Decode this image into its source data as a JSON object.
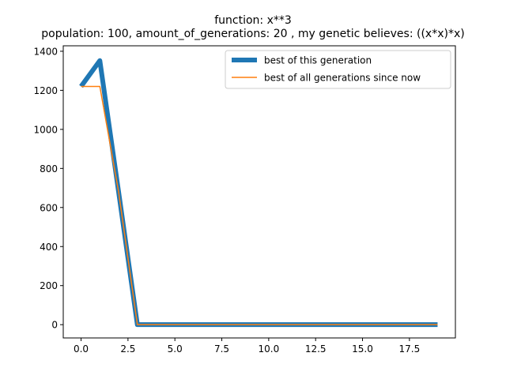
{
  "chart_data": {
    "type": "line",
    "title": "function:  x**3",
    "subtitle": "population: 100, amount_of_generations: 20 , my genetic believes: ((x*x)*x)",
    "xlabel": "",
    "ylabel": "",
    "xlim": [
      -0.95,
      19.95
    ],
    "ylim": [
      -68,
      1428
    ],
    "xticks": [
      0,
      2.5,
      5,
      7.5,
      10,
      12.5,
      15,
      17.5
    ],
    "xtick_labels": [
      "0.0",
      "2.5",
      "5.0",
      "7.5",
      "10.0",
      "12.5",
      "15.0",
      "17.5"
    ],
    "yticks": [
      0,
      200,
      400,
      600,
      800,
      1000,
      1200,
      1400
    ],
    "ytick_labels": [
      "0",
      "200",
      "400",
      "600",
      "800",
      "1000",
      "1200",
      "1400"
    ],
    "grid": false,
    "legend_position": "top-right",
    "x": [
      0,
      1,
      2,
      3,
      4,
      5,
      6,
      7,
      8,
      9,
      10,
      11,
      12,
      13,
      14,
      15,
      16,
      17,
      18,
      19
    ],
    "series": [
      {
        "name": "best of this generation",
        "color": "#1f77b4",
        "values": [
          1220,
          1352,
          680,
          0,
          0,
          0,
          0,
          0,
          0,
          0,
          0,
          0,
          0,
          0,
          0,
          0,
          0,
          0,
          0,
          0
        ]
      },
      {
        "name": "best of all generations since now",
        "color": "#ff7f0e",
        "values": [
          1220,
          1220,
          680,
          0,
          0,
          0,
          0,
          0,
          0,
          0,
          0,
          0,
          0,
          0,
          0,
          0,
          0,
          0,
          0,
          0
        ]
      }
    ]
  }
}
